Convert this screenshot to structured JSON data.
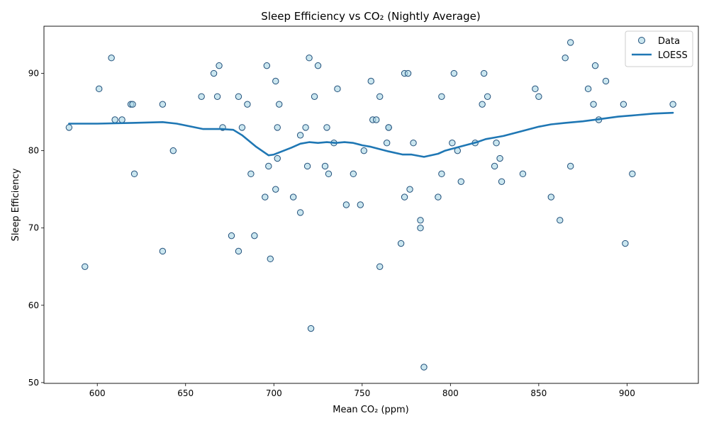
{
  "chart_data": {
    "type": "scatter",
    "title": "Sleep Efficiency vs CO₂ (Nightly Average)",
    "xlabel": "Mean CO₂ (ppm)",
    "ylabel": "Sleep Efficiency",
    "xlim": [
      569.8,
      940.4
    ],
    "ylim": [
      49.9,
      96.1
    ],
    "xticks": [
      600,
      650,
      700,
      750,
      800,
      850,
      900
    ],
    "yticks": [
      50,
      60,
      70,
      80,
      90
    ],
    "grid": false,
    "legend": {
      "placement": "top-right",
      "entries": [
        "Data",
        "LOESS"
      ]
    },
    "series": [
      {
        "name": "Data",
        "kind": "scatter",
        "color": "#add8e6",
        "edge_color": "#1f4e79",
        "points": [
          [
            584,
            83
          ],
          [
            593,
            65
          ],
          [
            601,
            88
          ],
          [
            608,
            92
          ],
          [
            610,
            84
          ],
          [
            614,
            84
          ],
          [
            619,
            86
          ],
          [
            620,
            86
          ],
          [
            621,
            77
          ],
          [
            637,
            86
          ],
          [
            637,
            67
          ],
          [
            643,
            80
          ],
          [
            659,
            87
          ],
          [
            666,
            90
          ],
          [
            668,
            87
          ],
          [
            669,
            91
          ],
          [
            671,
            83
          ],
          [
            676,
            69
          ],
          [
            680,
            87
          ],
          [
            680,
            67
          ],
          [
            682,
            83
          ],
          [
            685,
            86
          ],
          [
            687,
            77
          ],
          [
            689,
            69
          ],
          [
            695,
            74
          ],
          [
            696,
            91
          ],
          [
            697,
            78
          ],
          [
            698,
            66
          ],
          [
            701,
            89
          ],
          [
            701,
            75
          ],
          [
            702,
            83
          ],
          [
            702,
            79
          ],
          [
            703,
            86
          ],
          [
            711,
            74
          ],
          [
            715,
            72
          ],
          [
            715,
            82
          ],
          [
            718,
            83
          ],
          [
            719,
            78
          ],
          [
            720,
            92
          ],
          [
            721,
            57
          ],
          [
            723,
            87
          ],
          [
            725,
            91
          ],
          [
            729,
            78
          ],
          [
            730,
            83
          ],
          [
            731,
            77
          ],
          [
            734,
            81
          ],
          [
            736,
            88
          ],
          [
            741,
            73
          ],
          [
            745,
            77
          ],
          [
            749,
            73
          ],
          [
            751,
            80
          ],
          [
            755,
            89
          ],
          [
            756,
            84
          ],
          [
            758,
            84
          ],
          [
            760,
            87
          ],
          [
            760,
            65
          ],
          [
            764,
            81
          ],
          [
            765,
            83
          ],
          [
            765,
            83
          ],
          [
            772,
            68
          ],
          [
            774,
            90
          ],
          [
            774,
            74
          ],
          [
            776,
            90
          ],
          [
            777,
            75
          ],
          [
            779,
            81
          ],
          [
            783,
            71
          ],
          [
            783,
            70
          ],
          [
            785,
            52
          ],
          [
            793,
            74
          ],
          [
            795,
            87
          ],
          [
            795,
            77
          ],
          [
            801,
            81
          ],
          [
            802,
            90
          ],
          [
            804,
            80
          ],
          [
            806,
            76
          ],
          [
            814,
            81
          ],
          [
            818,
            86
          ],
          [
            819,
            90
          ],
          [
            821,
            87
          ],
          [
            825,
            78
          ],
          [
            826,
            81
          ],
          [
            828,
            79
          ],
          [
            829,
            76
          ],
          [
            841,
            77
          ],
          [
            848,
            88
          ],
          [
            850,
            87
          ],
          [
            857,
            74
          ],
          [
            862,
            71
          ],
          [
            865,
            92
          ],
          [
            868,
            94
          ],
          [
            868,
            78
          ],
          [
            878,
            88
          ],
          [
            881,
            86
          ],
          [
            882,
            91
          ],
          [
            884,
            84
          ],
          [
            888,
            89
          ],
          [
            898,
            86
          ],
          [
            899,
            68
          ],
          [
            903,
            77
          ],
          [
            926,
            86
          ]
        ]
      },
      {
        "name": "LOESS",
        "kind": "line",
        "color": "#1f77b4",
        "points": [
          [
            584,
            83.5
          ],
          [
            600,
            83.5
          ],
          [
            620,
            83.6
          ],
          [
            637,
            83.7
          ],
          [
            645,
            83.5
          ],
          [
            660,
            82.8
          ],
          [
            670,
            82.8
          ],
          [
            677,
            82.7
          ],
          [
            682,
            82.0
          ],
          [
            690,
            80.5
          ],
          [
            697,
            79.4
          ],
          [
            700,
            79.5
          ],
          [
            710,
            80.4
          ],
          [
            715,
            80.9
          ],
          [
            720,
            81.1
          ],
          [
            725,
            81.0
          ],
          [
            730,
            81.1
          ],
          [
            735,
            81.0
          ],
          [
            740,
            81.1
          ],
          [
            745,
            81.0
          ],
          [
            750,
            80.7
          ],
          [
            755,
            80.5
          ],
          [
            760,
            80.2
          ],
          [
            765,
            79.9
          ],
          [
            773,
            79.5
          ],
          [
            778,
            79.5
          ],
          [
            785,
            79.2
          ],
          [
            793,
            79.6
          ],
          [
            797,
            80.0
          ],
          [
            805,
            80.5
          ],
          [
            815,
            81.1
          ],
          [
            820,
            81.5
          ],
          [
            825,
            81.7
          ],
          [
            830,
            81.9
          ],
          [
            840,
            82.5
          ],
          [
            850,
            83.1
          ],
          [
            857,
            83.4
          ],
          [
            865,
            83.6
          ],
          [
            875,
            83.8
          ],
          [
            885,
            84.1
          ],
          [
            895,
            84.4
          ],
          [
            905,
            84.6
          ],
          [
            915,
            84.8
          ],
          [
            926,
            84.9
          ]
        ]
      }
    ]
  }
}
